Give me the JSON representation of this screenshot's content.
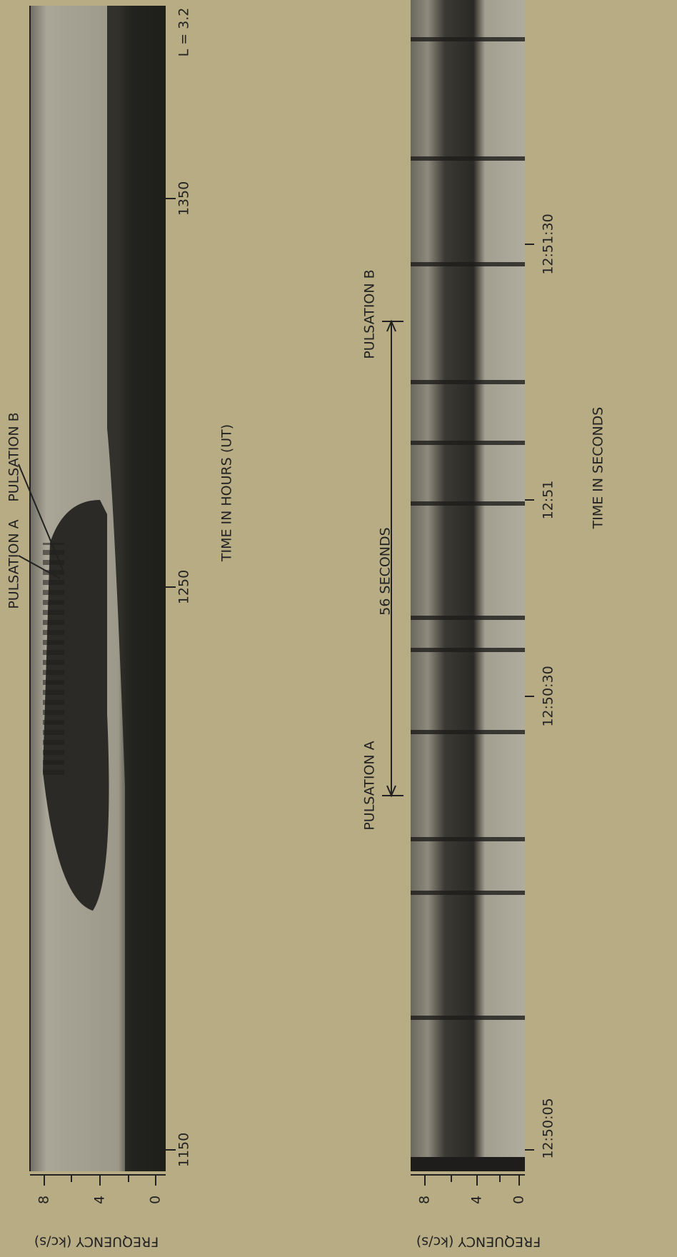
{
  "top_panel": {
    "annotation_label": "L = 3.2",
    "time_labels": [
      "1150",
      "1250",
      "1350"
    ],
    "time_title": "TIME IN HOURS (UT)",
    "frequency_labels": [
      "8",
      "4",
      "0"
    ],
    "frequency_title": "FREQUENCY (kc/s)",
    "pulsations": [
      "PULSATION A",
      "PULSATION B"
    ]
  },
  "bottom_panel": {
    "time_labels": [
      "12:50:05",
      "12:50:30",
      "12:51",
      "12:51:30"
    ],
    "time_title": "TIME IN SECONDS",
    "frequency_labels": [
      "8",
      "4",
      "0"
    ],
    "frequency_title": "FREQUENCY (kc/s)",
    "pulsations": [
      "PULSATION A",
      "PULSATION B"
    ],
    "interval_label": "56 SECONDS"
  }
}
